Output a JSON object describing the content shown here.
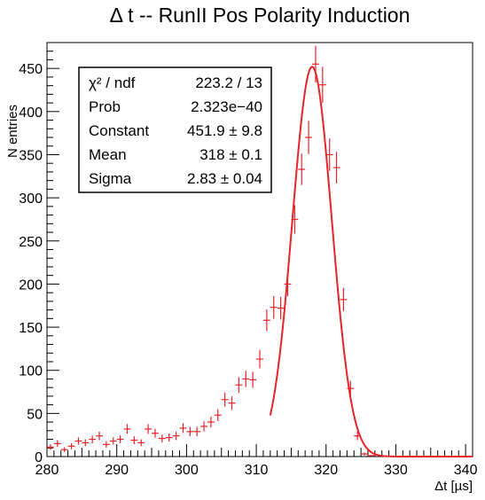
{
  "chart_data": {
    "type": "scatter",
    "title": "Δ t -- RunII Pos Polarity Induction",
    "xlabel": "Δt [µs]",
    "ylabel": "N entries",
    "xlim": [
      280,
      341
    ],
    "ylim": [
      0,
      480
    ],
    "xticks": [
      280,
      290,
      300,
      310,
      320,
      330,
      340
    ],
    "yticks": [
      0,
      50,
      100,
      150,
      200,
      250,
      300,
      350,
      400,
      450
    ],
    "grid": false,
    "series": [
      {
        "color": "#e8232a",
        "x": [
          280.5,
          281.5,
          282.5,
          283.5,
          284.5,
          285.5,
          286.5,
          287.5,
          288.5,
          289.5,
          290.5,
          291.5,
          292.5,
          293.5,
          294.5,
          295.5,
          296.5,
          297.5,
          298.5,
          299.5,
          300.5,
          301.5,
          302.5,
          303.5,
          304.5,
          305.5,
          306.5,
          307.5,
          308.5,
          309.5,
          310.5,
          311.5,
          312.5,
          313.5,
          314.5,
          315.5,
          316.5,
          317.5,
          318.5,
          319.5,
          320.5,
          321.5,
          322.5,
          323.5,
          324.5,
          325.5,
          326.5
        ],
        "y": [
          11,
          15,
          8,
          12,
          18,
          16,
          20,
          24,
          14,
          18,
          20,
          32,
          19,
          16,
          32,
          27,
          21,
          22,
          24,
          33,
          29,
          29,
          35,
          40,
          48,
          66,
          62,
          83,
          90,
          89,
          113,
          158,
          173,
          172,
          200,
          275,
          333,
          370,
          455,
          431,
          350,
          335,
          182,
          79,
          24,
          3,
          1
        ],
        "yerr": [
          3.3,
          3.9,
          2.8,
          3.5,
          4.2,
          4.0,
          4.5,
          4.9,
          3.7,
          4.2,
          4.5,
          5.7,
          4.4,
          4.0,
          5.7,
          5.2,
          4.6,
          4.7,
          4.9,
          5.7,
          5.4,
          5.4,
          5.9,
          6.3,
          6.9,
          8.1,
          7.9,
          9.1,
          9.5,
          9.4,
          10.6,
          12.6,
          13.2,
          13.1,
          14.1,
          16.6,
          18.2,
          19.2,
          21.3,
          20.8,
          18.7,
          18.3,
          13.5,
          8.9,
          4.9,
          1.7,
          1.0
        ]
      }
    ],
    "fit": {
      "function": "gaussian",
      "color": "#e8232a",
      "range": [
        312,
        341
      ],
      "constant": 451.9,
      "mean": 318,
      "sigma": 2.83
    },
    "stats_box": {
      "rows": [
        {
          "label": "χ² / ndf",
          "value": "223.2 / 13"
        },
        {
          "label": "Prob",
          "value": "2.323e−40"
        },
        {
          "label": "Constant",
          "value": "451.9 ± 9.8"
        },
        {
          "label": "Mean",
          "value": "318 ± 0.1"
        },
        {
          "label": "Sigma",
          "value": "2.83 ± 0.04"
        }
      ]
    }
  }
}
